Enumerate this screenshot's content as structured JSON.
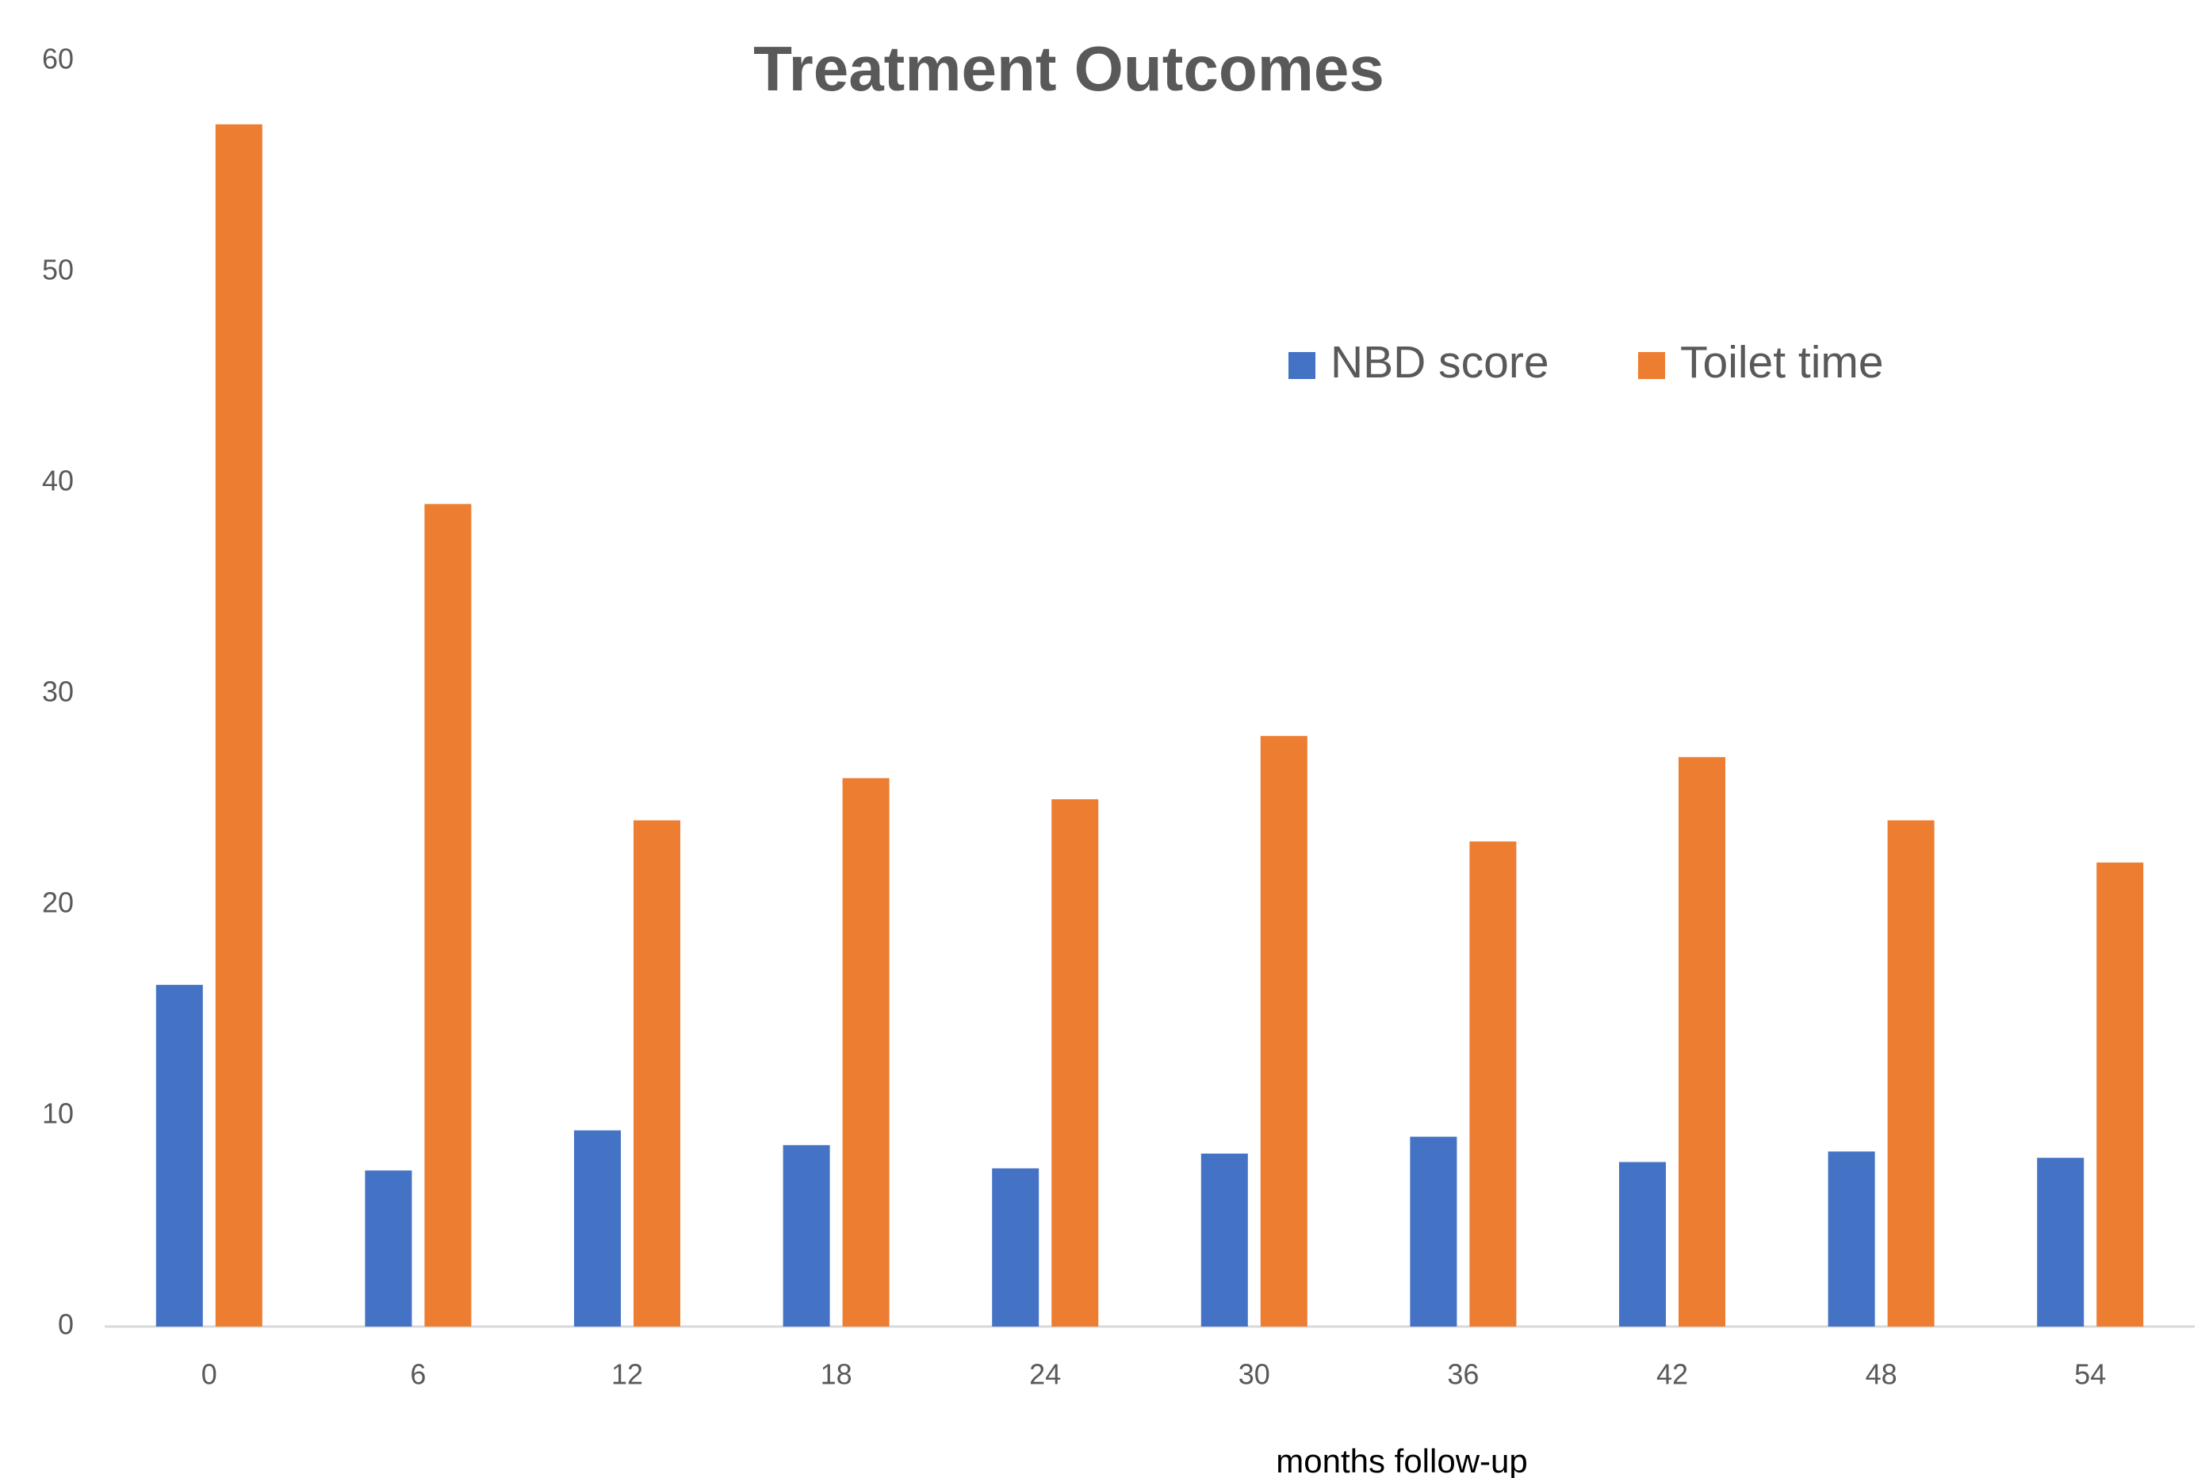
{
  "chart_data": {
    "type": "bar",
    "title": "Treatment Outcomes",
    "x_label": "months follow-up",
    "categories": [
      "0",
      "6",
      "12",
      "18",
      "24",
      "30",
      "36",
      "42",
      "48",
      "54"
    ],
    "series": [
      {
        "name": "NBD score",
        "color": "#4472c4",
        "values": [
          16.2,
          7.4,
          9.3,
          8.6,
          7.5,
          8.2,
          9.0,
          7.8,
          8.3,
          8.0
        ]
      },
      {
        "name": "Toilet time",
        "color": "#ed7d31",
        "values": [
          57,
          39,
          24,
          26,
          25,
          28,
          23,
          27,
          24,
          22
        ]
      }
    ],
    "ylim": [
      0,
      60
    ],
    "yticks": [
      0,
      10,
      20,
      30,
      40,
      50,
      60
    ],
    "grid": false,
    "legend": "upper right"
  }
}
